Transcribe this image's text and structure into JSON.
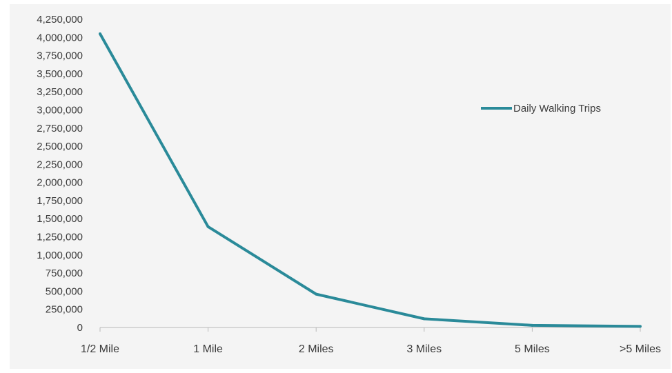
{
  "chart_data": {
    "type": "line",
    "title": "",
    "xlabel": "",
    "ylabel": "",
    "categories": [
      "1/2 Mile",
      "1 Mile",
      "2 Miles",
      "3 Miles",
      "5 Miles",
      ">5 Miles"
    ],
    "series": [
      {
        "name": "Daily Walking Trips",
        "values": [
          4050000,
          1390000,
          460000,
          120000,
          30000,
          15000
        ],
        "color": "#2a8a99"
      }
    ],
    "ylim": [
      0,
      4250000
    ],
    "yticks": [
      {
        "value": 0,
        "label": "0"
      },
      {
        "value": 250000,
        "label": "250,000"
      },
      {
        "value": 500000,
        "label": "500,000"
      },
      {
        "value": 750000,
        "label": "750,000"
      },
      {
        "value": 1000000,
        "label": "1,000,000"
      },
      {
        "value": 1250000,
        "label": "1,250,000"
      },
      {
        "value": 1500000,
        "label": "1,500,000"
      },
      {
        "value": 1750000,
        "label": "1,750,000"
      },
      {
        "value": 2000000,
        "label": "2,000,000"
      },
      {
        "value": 2250000,
        "label": "2,250,000"
      },
      {
        "value": 2500000,
        "label": "2,500,000"
      },
      {
        "value": 2750000,
        "label": "2,750,000"
      },
      {
        "value": 3000000,
        "label": "3,000,000"
      },
      {
        "value": 3250000,
        "label": "3,250,000"
      },
      {
        "value": 3500000,
        "label": "3,500,000"
      },
      {
        "value": 3750000,
        "label": "3,750,000"
      },
      {
        "value": 4000000,
        "label": "4,000,000"
      },
      {
        "value": 4250000,
        "label": "4,250,000"
      }
    ],
    "grid": false,
    "legend_position": "right"
  }
}
